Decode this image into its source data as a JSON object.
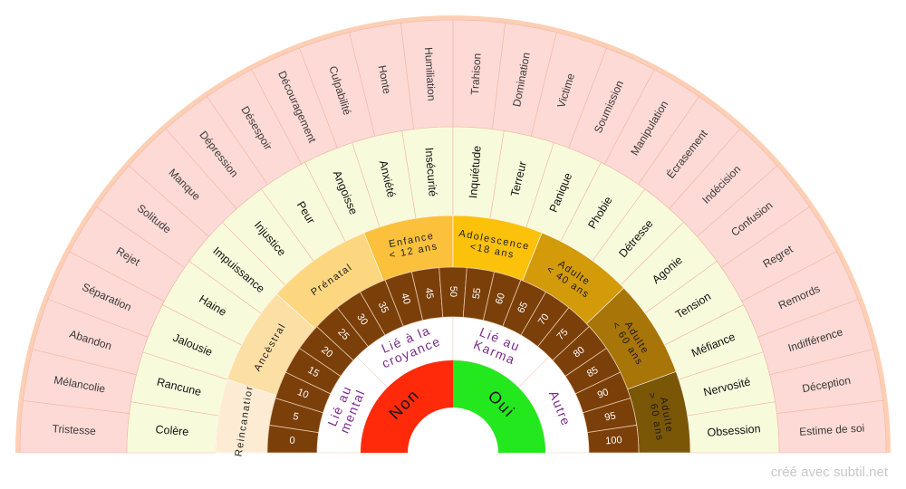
{
  "credit": "créé avec subtil.net",
  "colors": {
    "outer_ring": "#fddad6",
    "emotion_ring": "#f8fbdb",
    "number_ring": "#7b3f0a",
    "border_ring": "#fdcfb4",
    "non": "#ff2a0a",
    "oui": "#23e81e",
    "category_text": "#7a2a8a",
    "divider": "#f3b5a2"
  },
  "outer_ring": [
    "Tristesse",
    "Mélancolie",
    "Abandon",
    "Séparation",
    "Rejet",
    "Solitude",
    "Manque",
    "Dépression",
    "Désespoir",
    "Découragement",
    "Culpabilité",
    "Honte",
    "Humiliation",
    "Trahison",
    "Domination",
    "Victime",
    "Soumission",
    "Manipulation",
    "Écrasement",
    "Indécision",
    "Confusion",
    "Regret",
    "Remords",
    "Indifférence",
    "Déception",
    "Estime de soi"
  ],
  "emotion_ring": [
    "Colère",
    "Rancune",
    "Jalousie",
    "Haine",
    "Impuissance",
    "Injustice",
    "Peur",
    "Angoisse",
    "Anxiété",
    "Insécurité",
    "Inquiétude",
    "Terreur",
    "Panique",
    "Phobie",
    "Détresse",
    "Agonie",
    "Tension",
    "Méfiance",
    "Nervosité",
    "Obsession"
  ],
  "age_ring": [
    {
      "label": "Reincanation",
      "color": "#fdecd3"
    },
    {
      "label": "Ancèstral",
      "color": "#fcdfa5"
    },
    {
      "label": "Prénatal",
      "color": "#fdd680"
    },
    {
      "label": "Enfance\n< 12 ans",
      "color": "#fbc13c"
    },
    {
      "label": "Adolescence\n<18 ans",
      "color": "#fcc10a"
    },
    {
      "label": "Adulte\n< 40 ans",
      "color": "#d39a0a"
    },
    {
      "label": "Adulte\n< 60 ans",
      "color": "#a87508"
    },
    {
      "label": "Adulte\n> 60 ans",
      "color": "#7a5607"
    }
  ],
  "number_ring": [
    "0",
    "5",
    "10",
    "15",
    "20",
    "25",
    "30",
    "35",
    "40",
    "45",
    "50",
    "55",
    "60",
    "65",
    "70",
    "75",
    "80",
    "85",
    "90",
    "95",
    "100"
  ],
  "category_ring": [
    "Lié au\nmental",
    "Lié à la\ncroyance",
    "Lié au\nKarma",
    "Autre"
  ],
  "answer_ring": [
    {
      "label": "Non",
      "color": "#ff2a0a"
    },
    {
      "label": "Oui",
      "color": "#23e81e"
    }
  ]
}
